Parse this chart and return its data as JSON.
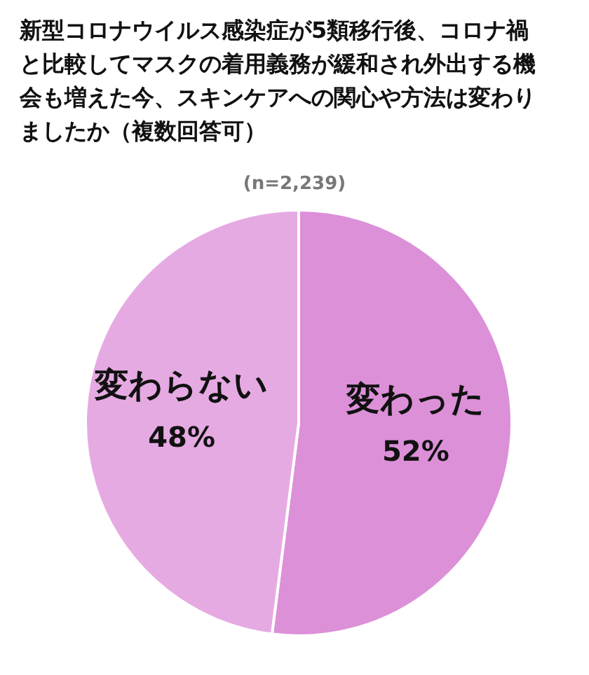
{
  "chart_data": {
    "type": "pie",
    "title": "新型コロナウイルス感染症が5類移行後、コロナ禍と比較してマスクの着用義務が緩和され外出する機会も増えた今、スキンケアへの関心や方法は変わりましたか（複数回答可）",
    "subtitle": "(n=2,239)",
    "categories": [
      "変わった",
      "変わらない"
    ],
    "values": [
      52,
      48
    ],
    "value_labels": [
      "52%",
      "48%"
    ],
    "colors": [
      "#dc90d8",
      "#e6aae3"
    ]
  }
}
